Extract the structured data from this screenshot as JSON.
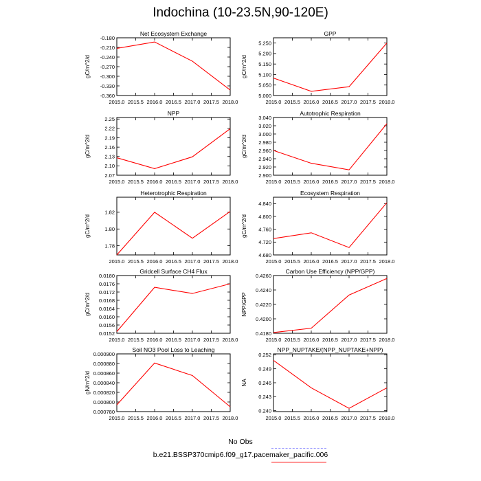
{
  "title": "Indochina (10-23.5N,90-120E)",
  "colors": {
    "model_line": "#ff0000",
    "obs_line": "#9a9aff",
    "axis": "#000000"
  },
  "legend": {
    "obs_label": "No Obs",
    "model_label": "b.e21.BSSP370cmip6.f09_g17.pacemaker_pacific.006"
  },
  "chart_data": [
    {
      "type": "line",
      "title": "Net Ecosystem Exchange",
      "ylabel": "gC/m^2/d",
      "x": [
        2015.0,
        2016.0,
        2017.0,
        2018.0
      ],
      "values": [
        -0.213,
        -0.193,
        -0.253,
        -0.343
      ],
      "xlim": [
        2015.0,
        2018.0
      ],
      "ylim": [
        -0.36,
        -0.18
      ],
      "xticks": [
        "2015.0",
        "2015.5",
        "2016.0",
        "2016.5",
        "2017.0",
        "2017.5",
        "2018.0"
      ],
      "yticks": [
        "-0.180",
        "-0.210",
        "-0.240",
        "-0.270",
        "-0.300",
        "-0.330",
        "-0.360"
      ]
    },
    {
      "type": "line",
      "title": "GPP",
      "ylabel": "gC/m^2/d",
      "x": [
        2015.0,
        2016.0,
        2017.0,
        2018.0
      ],
      "values": [
        5.083,
        5.02,
        5.042,
        5.25
      ],
      "xlim": [
        2015.0,
        2018.0
      ],
      "ylim": [
        5.0,
        5.275
      ],
      "xticks": [
        "2015.0",
        "2015.5",
        "2016.0",
        "2016.5",
        "2017.0",
        "2017.5",
        "2018.0"
      ],
      "yticks": [
        "5.250",
        "5.200",
        "5.150",
        "5.100",
        "5.050",
        "5.000"
      ]
    },
    {
      "type": "line",
      "title": "NPP",
      "ylabel": "gC/m^2/d",
      "x": [
        2015.0,
        2016.0,
        2017.0,
        2018.0
      ],
      "values": [
        2.126,
        2.091,
        2.129,
        2.219
      ],
      "xlim": [
        2015.0,
        2018.0
      ],
      "ylim": [
        2.07,
        2.255
      ],
      "xticks": [
        "2015.0",
        "2015.5",
        "2016.0",
        "2016.5",
        "2017.0",
        "2017.5",
        "2018.0"
      ],
      "yticks": [
        "2.25",
        "2.22",
        "2.19",
        "2.16",
        "2.13",
        "2.10",
        "2.07"
      ]
    },
    {
      "type": "line",
      "title": "Autotrophic Respiration",
      "ylabel": "gC/m^2/d",
      "x": [
        2015.0,
        2016.0,
        2017.0,
        2018.0
      ],
      "values": [
        2.96,
        2.929,
        2.913,
        3.025
      ],
      "xlim": [
        2015.0,
        2018.0
      ],
      "ylim": [
        2.9,
        3.04
      ],
      "xticks": [
        "2015.0",
        "2015.5",
        "2016.0",
        "2016.5",
        "2017.0",
        "2017.5",
        "2018.0"
      ],
      "yticks": [
        "3.040",
        "3.020",
        "3.000",
        "2.980",
        "2.960",
        "2.940",
        "2.920",
        "2.900"
      ]
    },
    {
      "type": "line",
      "title": "Heterotrophic Respiration",
      "ylabel": "gC/m^2/d",
      "x": [
        2015.0,
        2016.0,
        2017.0,
        2018.0
      ],
      "values": [
        1.769,
        1.82,
        1.789,
        1.821
      ],
      "xlim": [
        2015.0,
        2018.0
      ],
      "ylim": [
        1.769,
        1.838
      ],
      "xticks": [
        "2015.0",
        "2015.5",
        "2016.0",
        "2016.5",
        "2017.0",
        "2017.5",
        "2018.0"
      ],
      "yticks": [
        "1.82",
        "1.80",
        "1.78"
      ]
    },
    {
      "type": "line",
      "title": "Ecosystem Respiration",
      "ylabel": "gC/m^2/d",
      "x": [
        2015.0,
        2016.0,
        2017.0,
        2018.0
      ],
      "values": [
        4.731,
        4.749,
        4.703,
        4.843
      ],
      "xlim": [
        2015.0,
        2018.0
      ],
      "ylim": [
        4.68,
        4.86
      ],
      "xticks": [
        "2015.0",
        "2015.5",
        "2016.0",
        "2016.5",
        "2017.0",
        "2017.5",
        "2018.0"
      ],
      "yticks": [
        "4.840",
        "4.800",
        "4.760",
        "4.720",
        "4.680"
      ]
    },
    {
      "type": "line",
      "title": "Gridcell Surface CH4 Flux",
      "ylabel": "gC/m^2/d",
      "x": [
        2015.0,
        2016.0,
        2017.0,
        2018.0
      ],
      "values": [
        0.01528,
        0.01743,
        0.01713,
        0.0176
      ],
      "xlim": [
        2015.0,
        2018.0
      ],
      "ylim": [
        0.0152,
        0.018
      ],
      "xticks": [
        "2015.0",
        "2015.5",
        "2016.0",
        "2016.5",
        "2017.0",
        "2017.5",
        "2018.0"
      ],
      "yticks": [
        "0.0180",
        "0.0176",
        "0.0172",
        "0.0168",
        "0.0164",
        "0.0160",
        "0.0156",
        "0.0152"
      ]
    },
    {
      "type": "line",
      "title": "Carbon Use Efficiency (NPP/GPP)",
      "ylabel": "NPP/GPP",
      "x": [
        2015.0,
        2016.0,
        2017.0,
        2018.0
      ],
      "values": [
        0.4181,
        0.4187,
        0.4233,
        0.4256
      ],
      "xlim": [
        2015.0,
        2018.0
      ],
      "ylim": [
        0.418,
        0.426
      ],
      "xticks": [
        "2015.0",
        "2015.5",
        "2016.0",
        "2016.5",
        "2017.0",
        "2017.5",
        "2018.0"
      ],
      "yticks": [
        "0.4260",
        "0.4240",
        "0.4220",
        "0.4200",
        "0.4180"
      ]
    },
    {
      "type": "line",
      "title": "Soil NO3 Pool Loss to Leaching",
      "ylabel": "gN/m^2/d",
      "x": [
        2015.0,
        2016.0,
        2017.0,
        2018.0
      ],
      "values": [
        0.000794,
        0.000881,
        0.000855,
        0.00079
      ],
      "xlim": [
        2015.0,
        2018.0
      ],
      "ylim": [
        0.00078,
        0.0009
      ],
      "xticks": [
        "2015.0",
        "2015.5",
        "2016.0",
        "2016.5",
        "2017.0",
        "2017.5",
        "2018.0"
      ],
      "yticks": [
        "0.000900",
        "0.000880",
        "0.000860",
        "0.000840",
        "0.000820",
        "0.000800",
        "0.000780"
      ]
    },
    {
      "type": "line",
      "title": "NPP_NUPTAKE/(NPP_NUPTAKE+NPP)",
      "ylabel": "NA",
      "x": [
        2015.0,
        2016.0,
        2017.0,
        2018.0
      ],
      "values": [
        0.2508,
        0.2449,
        0.2405,
        0.2449
      ],
      "xlim": [
        2015.0,
        2018.0
      ],
      "ylim": [
        0.2398,
        0.2522
      ],
      "xticks": [
        "2015.0",
        "2015.5",
        "2016.0",
        "2016.5",
        "2017.0",
        "2017.5",
        "2018.0"
      ],
      "yticks": [
        "0.252",
        "0.249",
        "0.246",
        "0.243",
        "0.240"
      ]
    }
  ]
}
